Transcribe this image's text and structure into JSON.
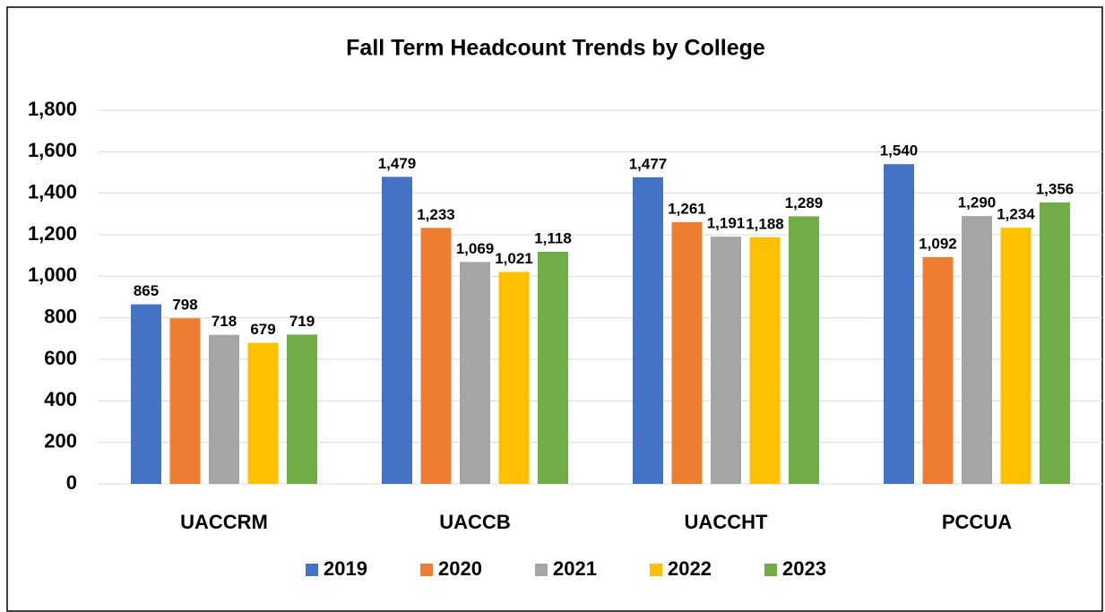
{
  "chart_data": {
    "type": "bar",
    "title": "Fall Term Headcount Trends by College",
    "categories": [
      "UACCRM",
      "UACCB",
      "UACCHT",
      "PCCUA"
    ],
    "series": [
      {
        "name": "2019",
        "color": "#4472c4",
        "values": [
          865,
          1479,
          1477,
          1540
        ],
        "value_labels": [
          "865",
          "1,479",
          "1,477",
          "1,540"
        ]
      },
      {
        "name": "2020",
        "color": "#ed7d31",
        "values": [
          798,
          1233,
          1261,
          1092
        ],
        "value_labels": [
          "798",
          "1,233",
          "1,261",
          "1,092"
        ]
      },
      {
        "name": "2021",
        "color": "#a5a5a5",
        "values": [
          718,
          1069,
          1191,
          1290
        ],
        "value_labels": [
          "718",
          "1,069",
          "1,191",
          "1,290"
        ]
      },
      {
        "name": "2022",
        "color": "#ffc000",
        "values": [
          679,
          1021,
          1188,
          1234
        ],
        "value_labels": [
          "679",
          "1,021",
          "1,188",
          "1,234"
        ]
      },
      {
        "name": "2023",
        "color": "#70ad47",
        "values": [
          719,
          1118,
          1289,
          1356
        ],
        "value_labels": [
          "719",
          "1,118",
          "1,289",
          "1,356"
        ]
      }
    ],
    "ylim": [
      0,
      1800
    ],
    "yticks": [
      0,
      200,
      400,
      600,
      800,
      {
        "value": 1000,
        "label": "1,000"
      },
      {
        "value": 1200,
        "label": "1,200"
      },
      {
        "value": 1400,
        "label": "1,400"
      },
      {
        "value": 1600,
        "label": "1,600"
      },
      {
        "value": 1800,
        "label": "1,800"
      }
    ],
    "grid": true,
    "legend": "bottom"
  }
}
